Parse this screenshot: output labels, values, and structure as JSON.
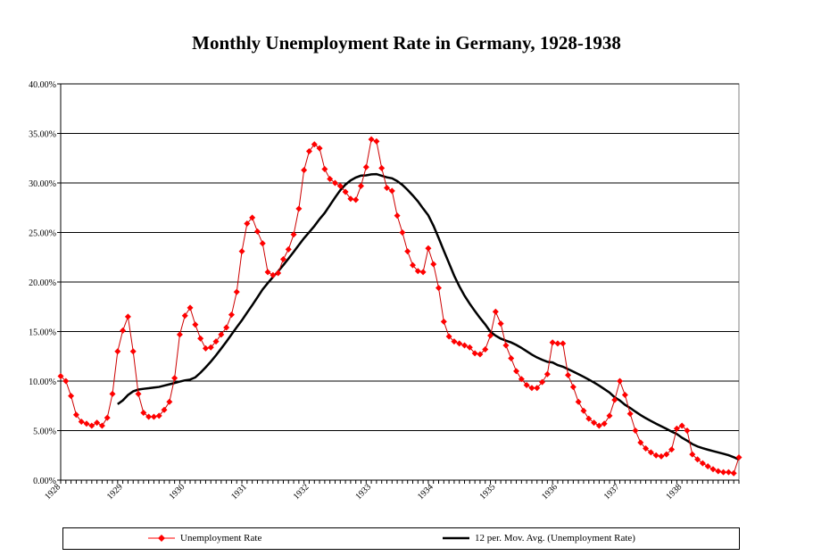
{
  "chart_data": {
    "type": "line",
    "title": "Monthly Unemployment Rate in Germany, 1928-1938",
    "xlabel": "",
    "ylabel": "",
    "x_tick_labels": [
      "1928",
      "1929",
      "1930",
      "1931",
      "1932",
      "1933",
      "1934",
      "1935",
      "1936",
      "1937",
      "1938"
    ],
    "y_tick_labels": [
      "0.00%",
      "5.00%",
      "10.00%",
      "15.00%",
      "20.00%",
      "25.00%",
      "30.00%",
      "35.00%",
      "40.00%"
    ],
    "ylim": [
      0,
      40
    ],
    "grid": "horizontal",
    "legend_position": "bottom",
    "series": [
      {
        "name": "Unemployment Rate",
        "color": "#ff0000",
        "marker": "diamond",
        "values": [
          10.5,
          10.0,
          8.5,
          6.6,
          5.9,
          5.7,
          5.5,
          5.8,
          5.5,
          6.3,
          8.7,
          13.0,
          15.1,
          16.5,
          13.0,
          8.7,
          6.8,
          6.4,
          6.4,
          6.5,
          7.1,
          7.9,
          10.3,
          14.7,
          16.6,
          17.4,
          15.7,
          14.3,
          13.3,
          13.4,
          14.0,
          14.7,
          15.4,
          16.7,
          19.0,
          23.1,
          25.9,
          26.5,
          25.1,
          23.9,
          21.0,
          20.7,
          20.9,
          22.3,
          23.3,
          24.8,
          27.4,
          31.3,
          33.2,
          33.9,
          33.5,
          31.4,
          30.4,
          30.0,
          29.7,
          29.1,
          28.4,
          28.3,
          29.7,
          31.6,
          34.4,
          34.2,
          31.5,
          29.5,
          29.2,
          26.7,
          25.0,
          23.1,
          21.7,
          21.1,
          21.0,
          23.4,
          21.8,
          19.4,
          16.0,
          14.5,
          14.0,
          13.8,
          13.6,
          13.4,
          12.8,
          12.7,
          13.2,
          14.6,
          17.0,
          15.8,
          13.6,
          12.3,
          11.0,
          10.2,
          9.6,
          9.3,
          9.3,
          9.9,
          10.7,
          13.9,
          13.8,
          13.8,
          10.6,
          9.4,
          7.9,
          7.0,
          6.2,
          5.8,
          5.5,
          5.7,
          6.5,
          8.1,
          10.0,
          8.6,
          6.7,
          5.0,
          3.8,
          3.2,
          2.8,
          2.5,
          2.4,
          2.6,
          3.1,
          5.2,
          5.5,
          5.0,
          2.6,
          2.1,
          1.7,
          1.4,
          1.1,
          0.9,
          0.8,
          0.8,
          0.7,
          2.3
        ]
      },
      {
        "name": "12 per. Mov. Avg. (Unemployment Rate)",
        "color": "#000000",
        "period": 12
      }
    ]
  }
}
